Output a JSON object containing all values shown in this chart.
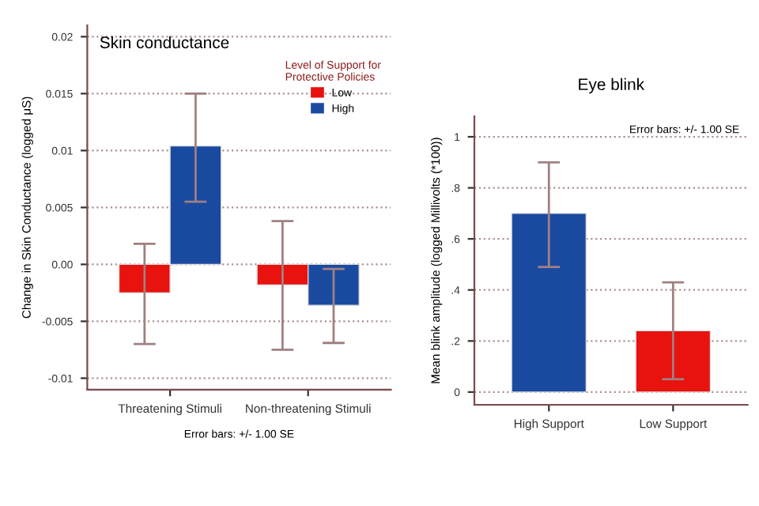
{
  "chart_data": [
    {
      "type": "bar",
      "title": "Skin conductance",
      "ylabel": "Change in Skin Conductance (logged μS)",
      "legend_title": "Level of Support for\nProtective Policies",
      "categories": [
        "Threatening Stimuli",
        "Non-threatening Stimuli"
      ],
      "series": [
        {
          "name": "Low",
          "color": "#e8120e",
          "values": [
            -0.0025,
            -0.0018
          ],
          "errors": [
            [
              -0.007,
              0.0018
            ],
            [
              -0.0075,
              0.0038
            ]
          ]
        },
        {
          "name": "High",
          "color": "#1a4aa0",
          "values": [
            0.0104,
            -0.0036
          ],
          "errors": [
            [
              0.0055,
              0.015
            ],
            [
              -0.0069,
              -0.0004
            ]
          ]
        }
      ],
      "ylim": [
        -0.011,
        0.021
      ],
      "yticks": [
        {
          "value": -0.01,
          "label": "-0.01"
        },
        {
          "value": -0.005,
          "label": "-0.005"
        },
        {
          "value": 0,
          "label": "0.00"
        },
        {
          "value": 0.005,
          "label": "0.005"
        },
        {
          "value": 0.01,
          "label": "0.01"
        },
        {
          "value": 0.015,
          "label": "0.015"
        },
        {
          "value": 0.02,
          "label": "0.02"
        }
      ],
      "grid": "y",
      "legend": "top right",
      "annotations": [
        "Error bars: +/- 1.00 SE"
      ]
    },
    {
      "type": "bar",
      "title": "Eye blink",
      "ylabel": "Mean blink amplitude (logged Millivolts (*100))",
      "categories": [
        "High Support",
        "Low Support"
      ],
      "values": [
        0.7,
        0.24
      ],
      "colors": [
        "#1a4aa0",
        "#e8120e"
      ],
      "errors": [
        [
          0.49,
          0.9
        ],
        [
          0.05,
          0.43
        ]
      ],
      "ylim": [
        -0.05,
        1.08
      ],
      "yticks": [
        {
          "value": 0,
          "label": "0"
        },
        {
          "value": 0.2,
          "label": ".2"
        },
        {
          "value": 0.4,
          "label": ".4"
        },
        {
          "value": 0.6,
          "label": ".6"
        },
        {
          "value": 0.8,
          "label": ".8"
        },
        {
          "value": 1,
          "label": "1"
        }
      ],
      "grid": "y",
      "annotations": [
        "Error bars: +/- 1.00 SE"
      ]
    }
  ]
}
